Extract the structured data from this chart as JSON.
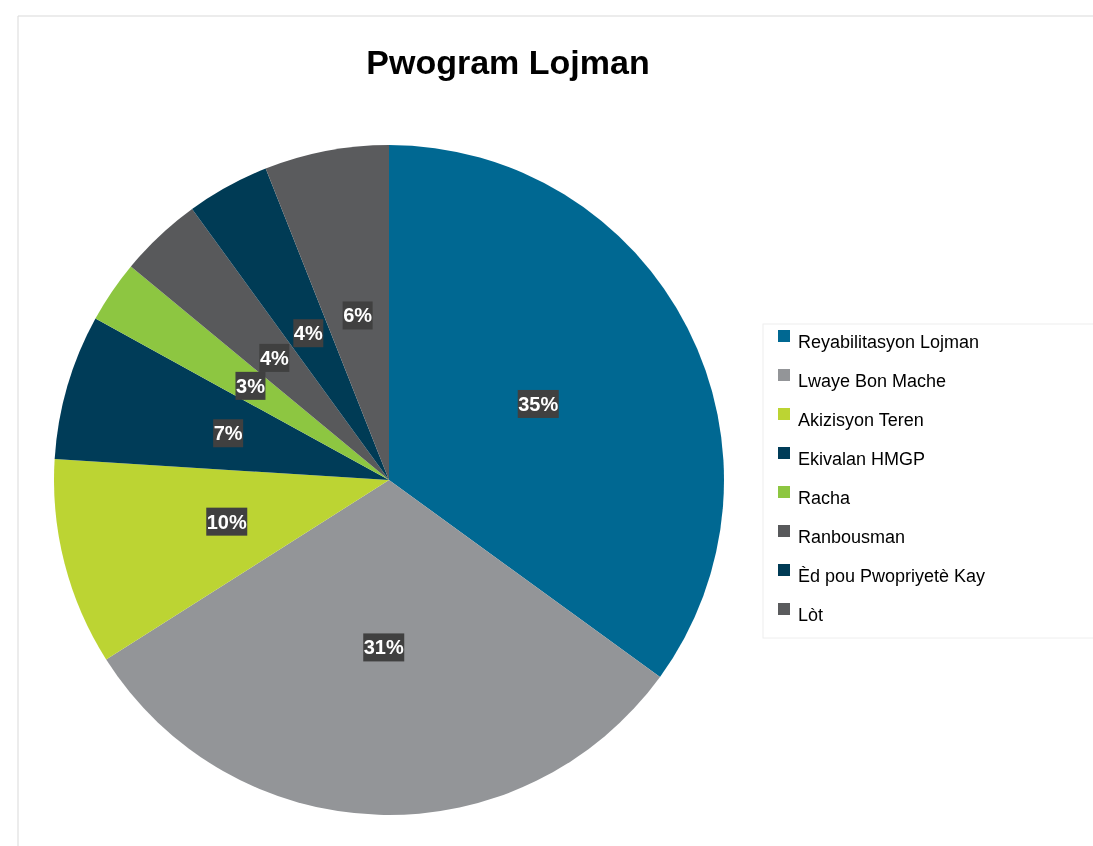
{
  "chart_data": {
    "type": "pie",
    "title": "Pwogram Lojman",
    "categories": [
      "Reyabilitasyon Lojman",
      "Lwaye Bon Mache",
      "Akizisyon Teren",
      "Ekivalan HMGP",
      "Racha",
      "Ranbousman",
      "Èd pou Pwopriyetè Kay",
      "Lòt"
    ],
    "values": [
      35,
      31,
      10,
      7,
      3,
      4,
      4,
      6
    ],
    "colors": [
      "#006892",
      "#939598",
      "#bcd433",
      "#003c58",
      "#8dc641",
      "#58595b",
      "#003b55",
      "#5a5b5d"
    ],
    "value_labels": [
      "35%",
      "31%",
      "10%",
      "7%",
      "3%",
      "4%",
      "4%",
      "6%"
    ],
    "legend": "right"
  }
}
